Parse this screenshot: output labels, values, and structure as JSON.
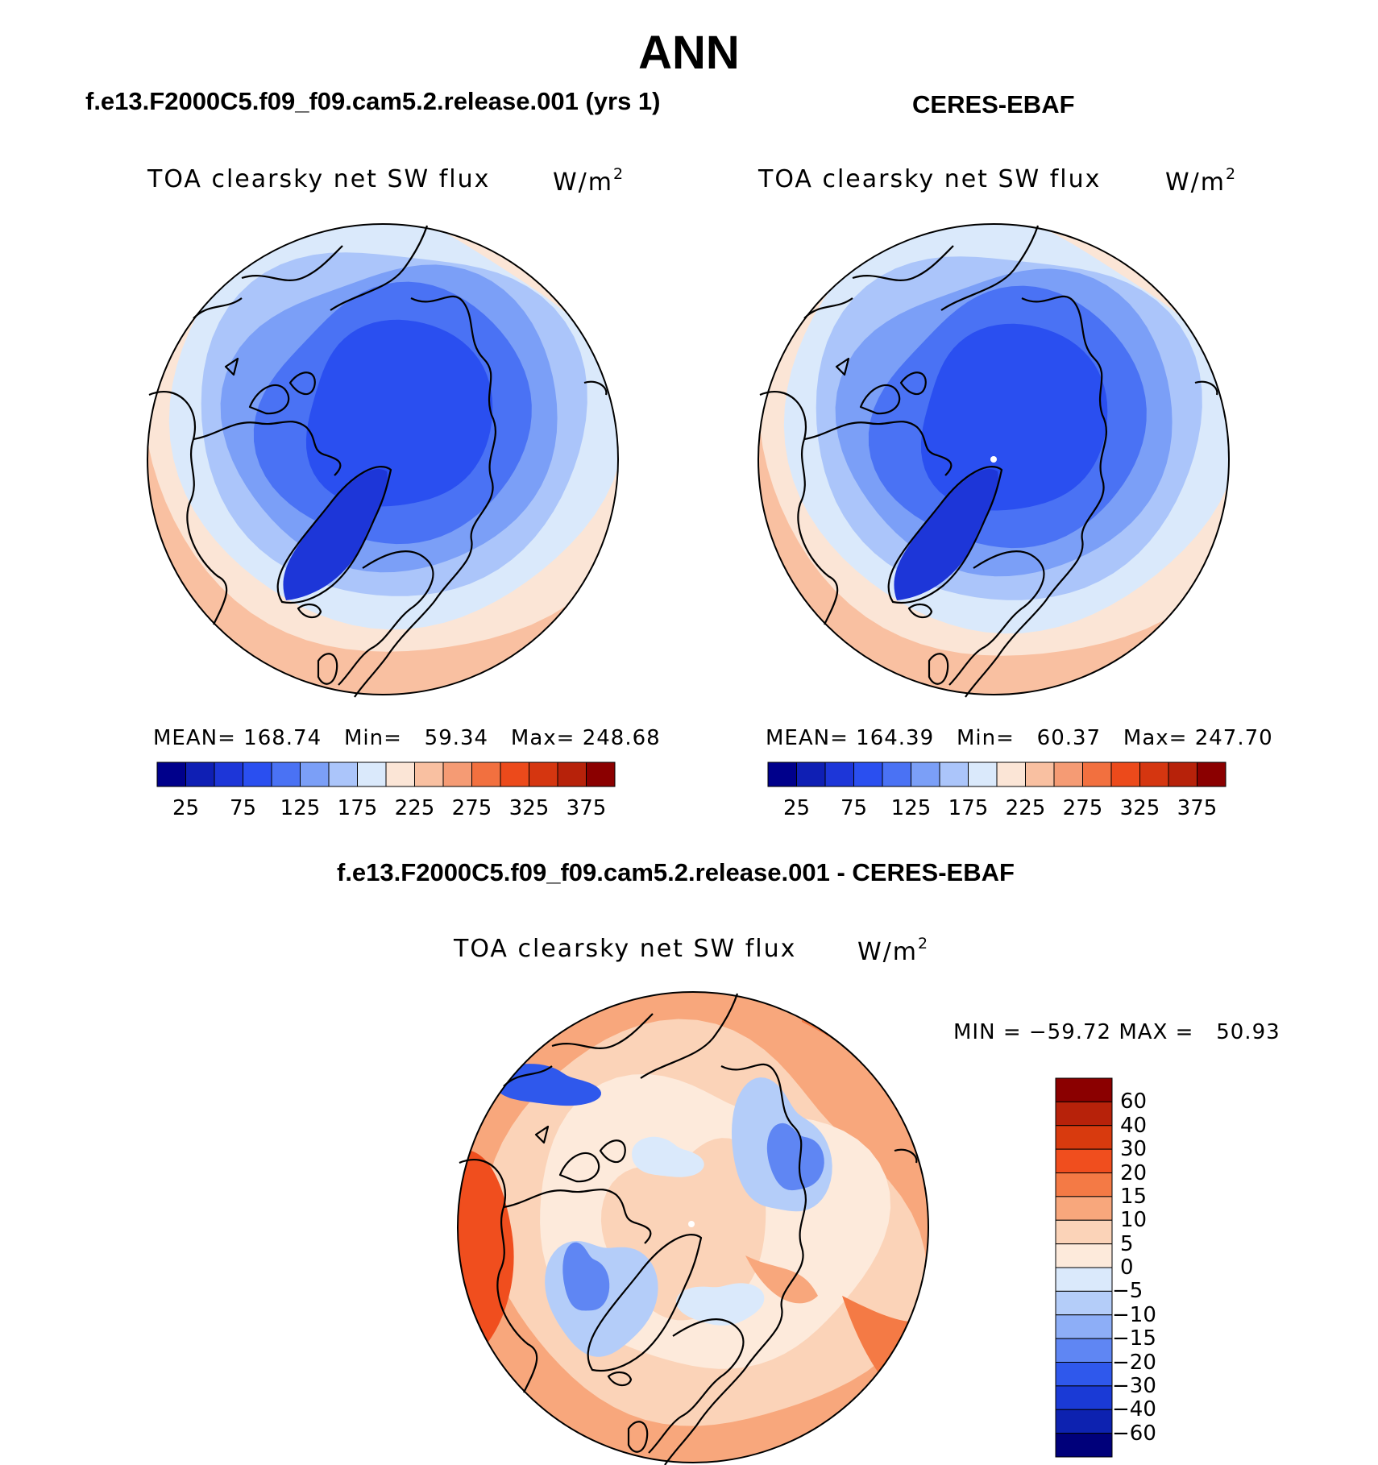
{
  "title": "ANN",
  "panels": [
    {
      "case": "f.e13.F2000C5.f09_f09.cam5.2.release.001 (yrs 1)",
      "variable": "TOA clearsky net SW flux",
      "units_base": "W/m",
      "units_exp": "2",
      "stats": {
        "mean_label": "MEAN=",
        "mean": "168.74",
        "min_label": "Min=",
        "min": "59.34",
        "max_label": "Max=",
        "max": "248.68"
      }
    },
    {
      "case": "CERES-EBAF",
      "variable": "TOA clearsky net SW flux",
      "units_base": "W/m",
      "units_exp": "2",
      "stats": {
        "mean_label": "MEAN=",
        "mean": "164.39",
        "min_label": "Min=",
        "min": "60.37",
        "max_label": "Max=",
        "max": "247.70"
      }
    }
  ],
  "difference": {
    "case": "f.e13.F2000C5.f09_f09.cam5.2.release.001 - CERES-EBAF",
    "variable": "TOA clearsky net SW flux",
    "units_base": "W/m",
    "units_exp": "2",
    "minmax_text": "MIN = −59.72 MAX =   50.93"
  },
  "colorbar_top": {
    "labels": [
      "25",
      "75",
      "125",
      "175",
      "225",
      "275",
      "325",
      "375"
    ],
    "colors": [
      "#00008b",
      "#0f1fb4",
      "#1d36d8",
      "#2a4ff0",
      "#4a72f4",
      "#7b9ff7",
      "#abc5fa",
      "#dae9fb",
      "#fbe5d6",
      "#f9c0a1",
      "#f59b74",
      "#f2703f",
      "#ec4a1b",
      "#d53610",
      "#b7220a",
      "#8b0000"
    ]
  },
  "colorbar_diff": {
    "labels": [
      "60",
      "40",
      "30",
      "20",
      "15",
      "10",
      "5",
      "0",
      "−5",
      "−10",
      "−15",
      "−20",
      "−30",
      "−40",
      "−60"
    ],
    "colors": [
      "#8b0000",
      "#b7220a",
      "#d83a0e",
      "#f04e1e",
      "#f47a45",
      "#f8a77c",
      "#fbd3b8",
      "#fdeadb",
      "#dae9fb",
      "#b4cdf9",
      "#8daef7",
      "#5f86f3",
      "#2f58ec",
      "#1a3ad6",
      "#0d22b0",
      "#00007a"
    ]
  },
  "chart_data": [
    {
      "type": "heatmap",
      "projection": "north polar stereographic",
      "title": "f.e13.F2000C5.f09_f09.cam5.2.release.001 (yrs 1)",
      "variable": "TOA clearsky net SW flux",
      "units": "W/m2",
      "levels": [
        25,
        50,
        75,
        100,
        125,
        150,
        175,
        200,
        225,
        250,
        275,
        300,
        325,
        350,
        375
      ],
      "mean": 168.74,
      "min": 59.34,
      "max": 248.68,
      "approx_zonal_pattern": {
        "pole": 75,
        "lat_75": 100,
        "lat_65": 150,
        "lat_55": 190,
        "lat_45": 230
      }
    },
    {
      "type": "heatmap",
      "projection": "north polar stereographic",
      "title": "CERES-EBAF",
      "variable": "TOA clearsky net SW flux",
      "units": "W/m2",
      "levels": [
        25,
        50,
        75,
        100,
        125,
        150,
        175,
        200,
        225,
        250,
        275,
        300,
        325,
        350,
        375
      ],
      "mean": 164.39,
      "min": 60.37,
      "max": 247.7,
      "approx_zonal_pattern": {
        "pole": 75,
        "lat_75": 95,
        "lat_65": 145,
        "lat_55": 185,
        "lat_45": 225
      }
    },
    {
      "type": "heatmap",
      "projection": "north polar stereographic",
      "title": "f.e13.F2000C5.f09_f09.cam5.2.release.001 - CERES-EBAF",
      "variable": "TOA clearsky net SW flux",
      "units": "W/m2",
      "levels": [
        -60,
        -40,
        -30,
        -20,
        -15,
        -10,
        -5,
        0,
        5,
        10,
        15,
        20,
        30,
        40,
        60
      ],
      "min": -59.72,
      "max": 50.93
    }
  ]
}
